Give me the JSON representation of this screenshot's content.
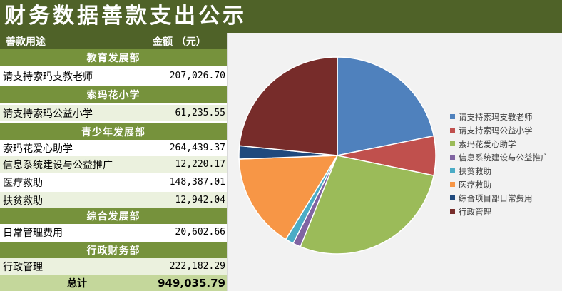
{
  "title": "财务数据善款支出公示",
  "table": {
    "headers": {
      "purpose": "善款用途",
      "amount": "金额 （元）"
    },
    "rows": [
      {
        "kind": "section",
        "label": "教育发展部"
      },
      {
        "kind": "item",
        "label": "请支持索玛支教老师",
        "amount": "207,026.70"
      },
      {
        "kind": "section",
        "label": "索玛花小学"
      },
      {
        "kind": "item",
        "label": "请支持索玛公益小学",
        "amount": "61,235.55"
      },
      {
        "kind": "section",
        "label": "青少年发展部"
      },
      {
        "kind": "item",
        "label": "索玛花爱心助学",
        "amount": "264,439.37"
      },
      {
        "kind": "item",
        "label": "信息系统建设与公益推广",
        "amount": "12,220.17"
      },
      {
        "kind": "item",
        "label": "医疗救助",
        "amount": "148,387.01"
      },
      {
        "kind": "item",
        "label": "扶贫救助",
        "amount": "12,942.04"
      },
      {
        "kind": "section",
        "label": "综合发展部"
      },
      {
        "kind": "item",
        "label": "日常管理费用",
        "amount": "20,602.66"
      },
      {
        "kind": "section",
        "label": "行政财务部"
      },
      {
        "kind": "item",
        "label": "行政管理",
        "amount": "222,182.29"
      }
    ],
    "total": {
      "label": "总计",
      "amount": "949,035.79"
    }
  },
  "chart_data": {
    "type": "pie",
    "title": "",
    "legend_position": "right",
    "slices": [
      {
        "name": "请支持索玛支教老师",
        "value": 207026.7,
        "color": "#4f81bd"
      },
      {
        "name": "请支持索玛公益小学",
        "value": 61235.55,
        "color": "#c0504d"
      },
      {
        "name": "索玛花爱心助学",
        "value": 264439.37,
        "color": "#9bbb59"
      },
      {
        "name": "信息系统建设与公益推广",
        "value": 12220.17,
        "color": "#8064a2"
      },
      {
        "name": "扶贫救助",
        "value": 12942.04,
        "color": "#4bacc6"
      },
      {
        "name": "医疗救助",
        "value": 148387.01,
        "color": "#f79646"
      },
      {
        "name": "综合项目部日常费用",
        "value": 20602.66,
        "color": "#1f497d"
      },
      {
        "name": "行政管理",
        "value": 222182.29,
        "color": "#772c2a"
      }
    ]
  }
}
